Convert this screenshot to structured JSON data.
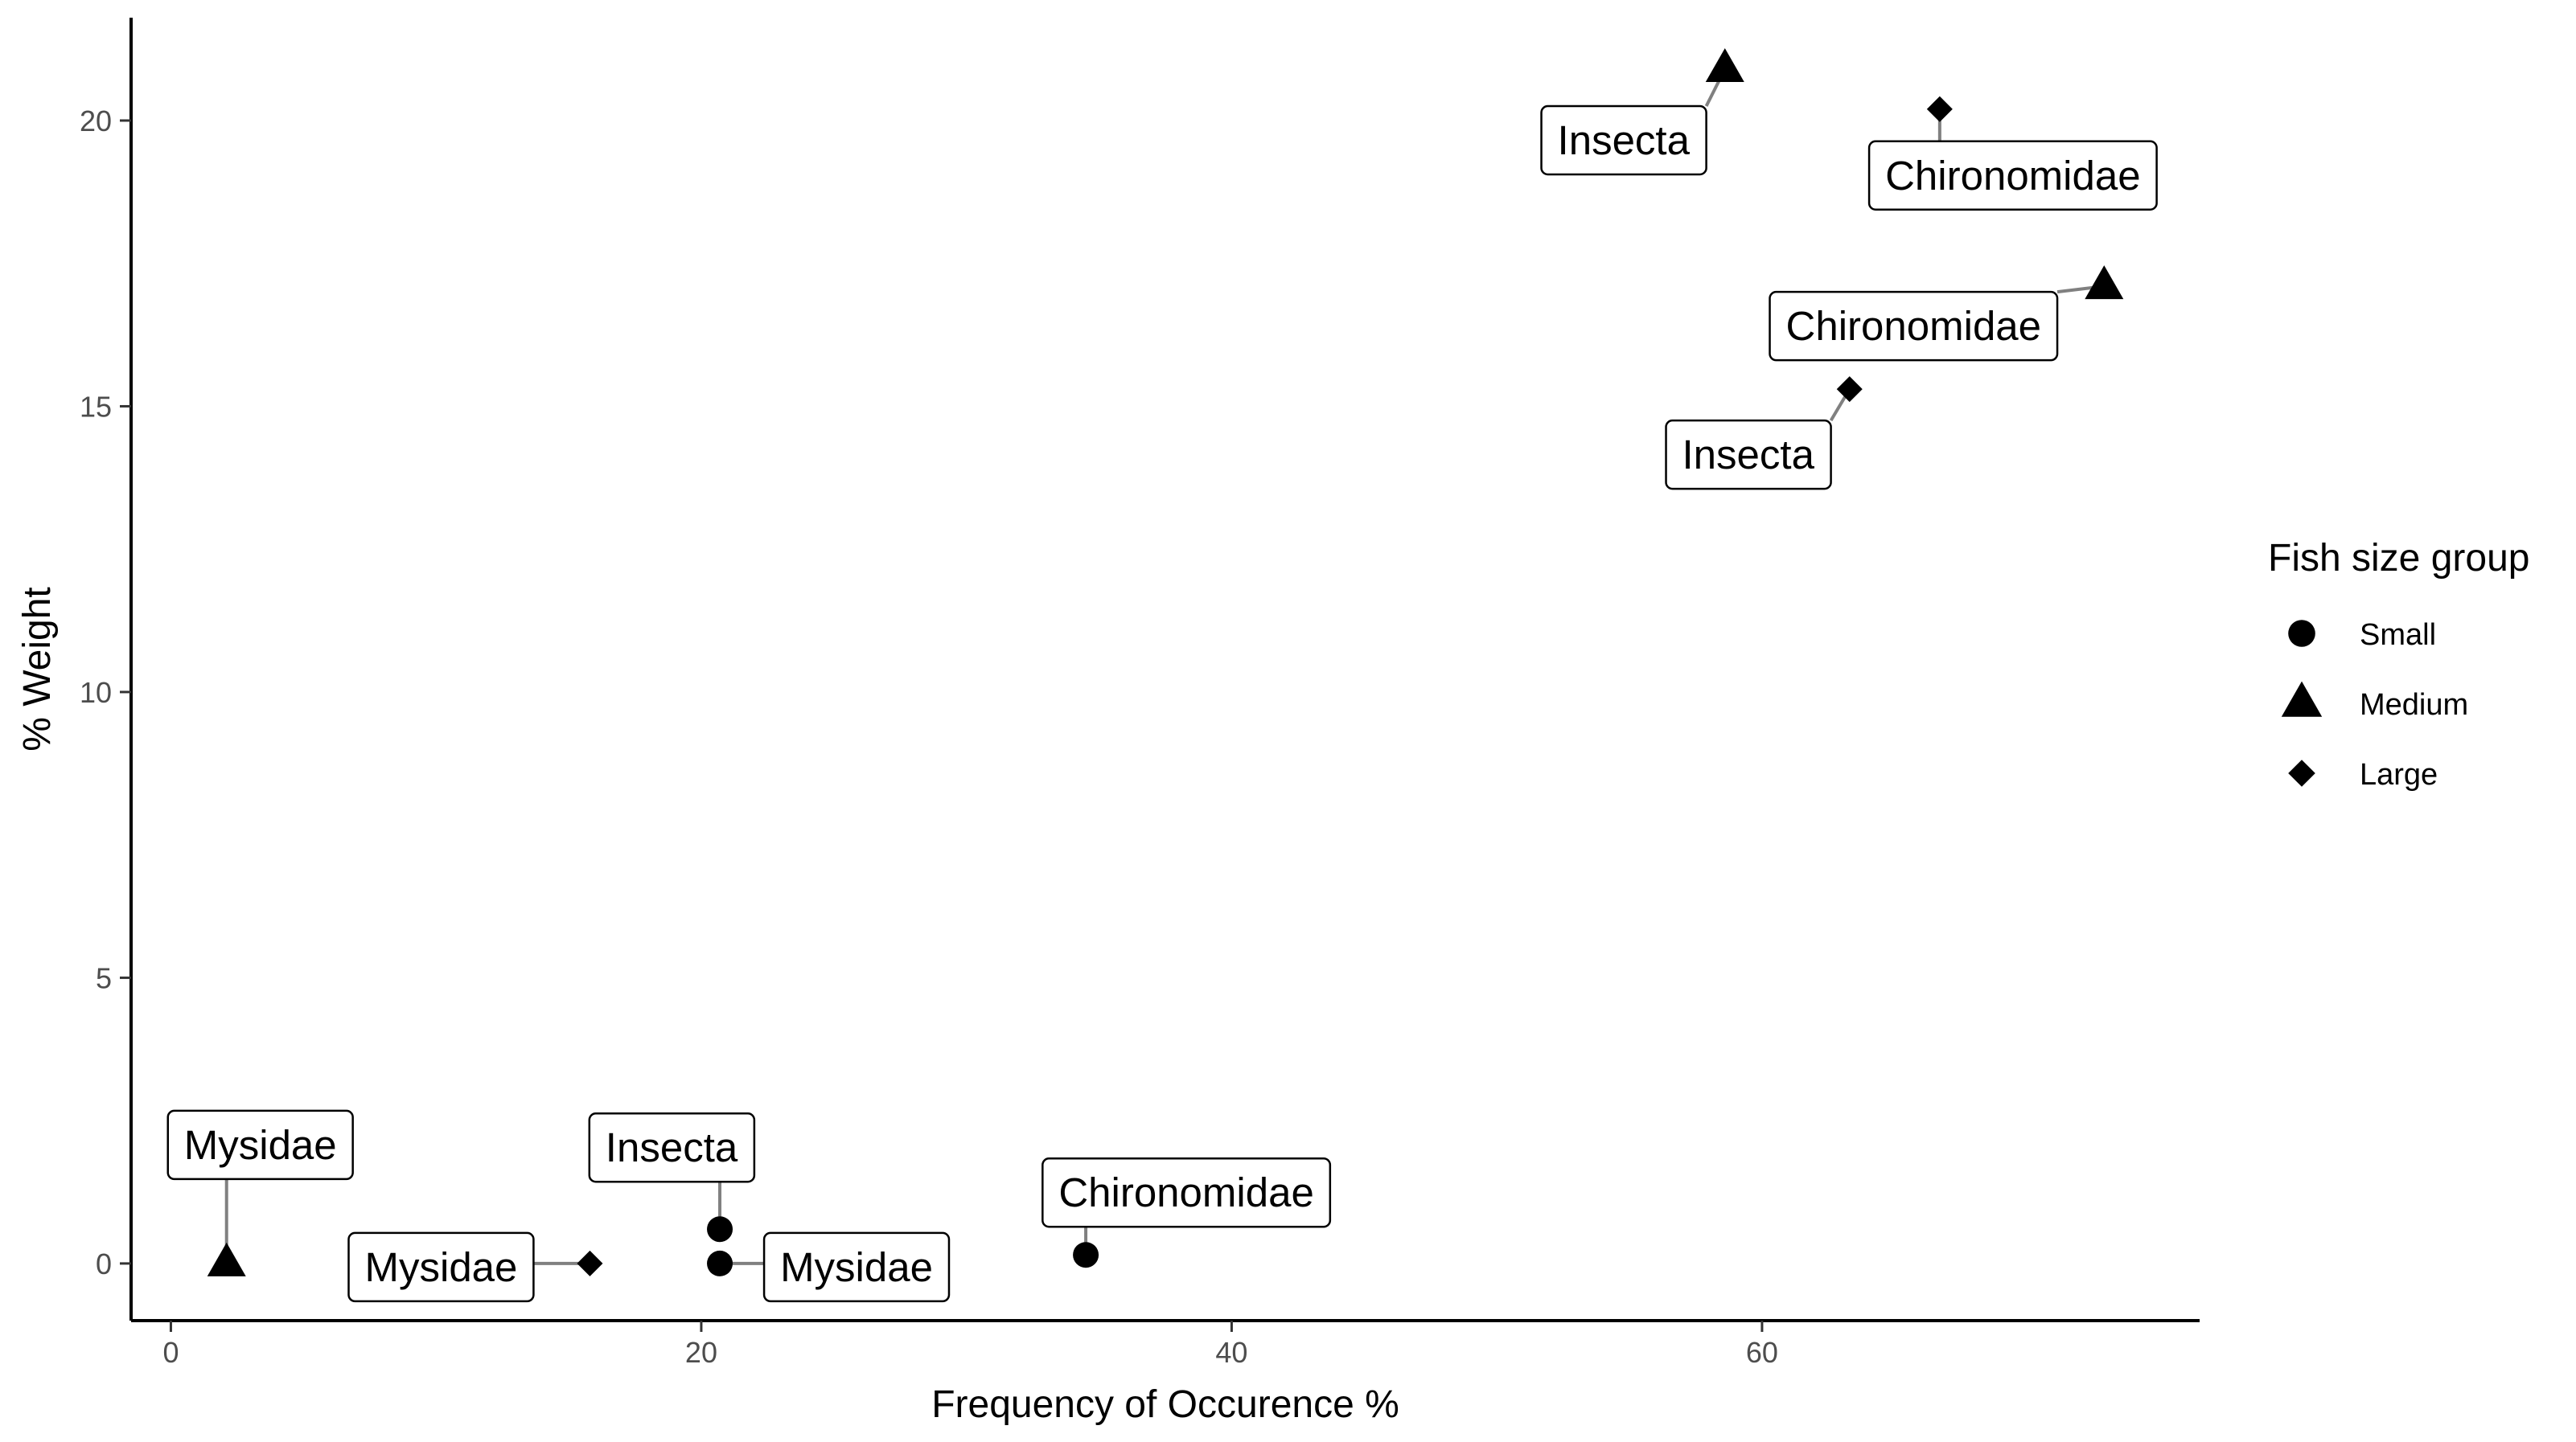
{
  "chart_data": {
    "type": "scatter",
    "title": "",
    "xlabel": "Frequency of Occurence %",
    "ylabel": "% Weight",
    "xlim": [
      -1.5,
      76.5
    ],
    "ylim": [
      -1.0,
      21.8
    ],
    "x_ticks": [
      0,
      20,
      40,
      60
    ],
    "y_ticks": [
      0,
      5,
      10,
      15,
      20
    ],
    "grid": false,
    "legend": {
      "title": "Fish size group",
      "placement": "right",
      "entries": [
        {
          "name": "Small",
          "shape": "circle"
        },
        {
          "name": "Medium",
          "shape": "triangle"
        },
        {
          "name": "Large",
          "shape": "diamond"
        }
      ]
    },
    "points": [
      {
        "group": "Small",
        "label": "Insecta",
        "x": 20.7,
        "y": 0.6
      },
      {
        "group": "Small",
        "label": "Mysidae",
        "x": 20.7,
        "y": 0.0
      },
      {
        "group": "Small",
        "label": "Chironomidae",
        "x": 34.5,
        "y": 0.15
      },
      {
        "group": "Medium",
        "label": "Mysidae",
        "x": 2.1,
        "y": 0.0
      },
      {
        "group": "Medium",
        "label": "Insecta",
        "x": 58.6,
        "y": 20.9
      },
      {
        "group": "Medium",
        "label": "Chironomidae",
        "x": 72.9,
        "y": 17.1
      },
      {
        "group": "Large",
        "label": "Mysidae",
        "x": 15.8,
        "y": 0.0
      },
      {
        "group": "Large",
        "label": "Chironomidae",
        "x": 66.7,
        "y": 20.2
      },
      {
        "group": "Large",
        "label": "Insecta",
        "x": 63.3,
        "y": 15.3
      }
    ]
  }
}
